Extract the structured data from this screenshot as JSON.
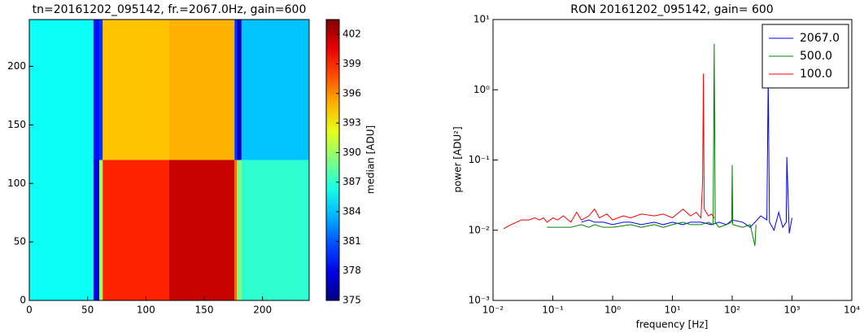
{
  "chart_data": [
    {
      "type": "heatmap",
      "title": "tn=20161202_095142, fr.=2067.0Hz, gain=600",
      "x_edges": [
        0,
        55,
        60,
        63,
        120,
        176,
        178,
        182,
        240
      ],
      "y_edges": [
        0,
        120,
        240
      ],
      "values": [
        [
          386,
          378,
          390,
          399,
          401.5,
          397,
          389,
          387
        ],
        [
          386,
          379,
          380,
          394.5,
          395,
          380,
          377,
          384
        ]
      ],
      "colormap": "jet",
      "clim": [
        375,
        403.5
      ],
      "cticks": [
        375,
        378,
        381,
        384,
        387,
        390,
        393,
        396,
        399,
        402
      ],
      "colorbar_label": "median [ADU]",
      "xlim": [
        0,
        240
      ],
      "xticks": [
        0,
        50,
        100,
        150,
        200
      ],
      "ylim": [
        0,
        240
      ],
      "yticks": [
        0,
        50,
        100,
        150,
        200
      ]
    },
    {
      "type": "line",
      "title": "RON 20161202_095142, gain= 600",
      "xlabel": "frequency [Hz]",
      "ylabel": "power [ADU²]",
      "xscale": "log",
      "yscale": "log",
      "xlim": [
        0.01,
        10000
      ],
      "xticks": [
        {
          "value": 0.01,
          "label": "10⁻²"
        },
        {
          "value": 0.1,
          "label": "10⁻¹"
        },
        {
          "value": 1,
          "label": "10⁰"
        },
        {
          "value": 10,
          "label": "10¹"
        },
        {
          "value": 100,
          "label": "10²"
        },
        {
          "value": 1000,
          "label": "10³"
        },
        {
          "value": 10000,
          "label": "10⁴"
        }
      ],
      "ylim": [
        0.001,
        10
      ],
      "yticks": [
        {
          "value": 0.001,
          "label": "10⁻³"
        },
        {
          "value": 0.01,
          "label": "10⁻²"
        },
        {
          "value": 0.1,
          "label": "10⁻¹"
        },
        {
          "value": 1,
          "label": "10⁰"
        },
        {
          "value": 10,
          "label": "10¹"
        }
      ],
      "legend": "upper right",
      "series": [
        {
          "name": "2067.0",
          "color": "#0000ff",
          "x": [
            0.3,
            0.4,
            0.5,
            0.7,
            1,
            1.5,
            2,
            3,
            5,
            7,
            10,
            15,
            20,
            30,
            45,
            60,
            80,
            100,
            150,
            200,
            300,
            380,
            400,
            420,
            500,
            600,
            700,
            800,
            820,
            900,
            1000
          ],
          "values": [
            0.013,
            0.014,
            0.013,
            0.013,
            0.012,
            0.013,
            0.013,
            0.012,
            0.013,
            0.012,
            0.013,
            0.012,
            0.013,
            0.013,
            0.012,
            0.013,
            0.012,
            0.014,
            0.013,
            0.011,
            0.016,
            0.014,
            1.5,
            0.013,
            0.01,
            0.018,
            0.011,
            0.013,
            0.11,
            0.009,
            0.015
          ]
        },
        {
          "name": "500.0",
          "color": "#008000",
          "x": [
            0.08,
            0.1,
            0.15,
            0.2,
            0.3,
            0.4,
            0.5,
            0.7,
            1,
            2,
            3,
            5,
            7,
            10,
            15,
            20,
            30,
            40,
            48,
            50,
            52,
            60,
            80,
            98,
            100,
            102,
            150,
            200,
            240,
            250
          ],
          "values": [
            0.011,
            0.011,
            0.011,
            0.011,
            0.012,
            0.011,
            0.012,
            0.011,
            0.011,
            0.012,
            0.011,
            0.012,
            0.011,
            0.012,
            0.013,
            0.012,
            0.012,
            0.013,
            0.012,
            4.5,
            0.013,
            0.011,
            0.012,
            0.013,
            0.085,
            0.012,
            0.011,
            0.012,
            0.006,
            0.012
          ]
        },
        {
          "name": "100.0",
          "color": "#ff0000",
          "x": [
            0.015,
            0.02,
            0.03,
            0.04,
            0.05,
            0.06,
            0.07,
            0.08,
            0.1,
            0.12,
            0.15,
            0.2,
            0.25,
            0.3,
            0.4,
            0.5,
            0.6,
            0.8,
            1,
            1.5,
            2,
            3,
            5,
            7,
            10,
            15,
            20,
            25,
            30,
            32,
            33,
            34,
            40,
            45,
            50
          ],
          "values": [
            0.0105,
            0.012,
            0.014,
            0.014,
            0.015,
            0.014,
            0.015,
            0.013,
            0.015,
            0.014,
            0.016,
            0.013,
            0.018,
            0.014,
            0.016,
            0.02,
            0.015,
            0.017,
            0.014,
            0.016,
            0.015,
            0.017,
            0.016,
            0.017,
            0.015,
            0.02,
            0.016,
            0.018,
            0.015,
            0.05,
            1.7,
            0.02,
            0.016,
            0.017,
            0.015
          ]
        }
      ]
    }
  ]
}
